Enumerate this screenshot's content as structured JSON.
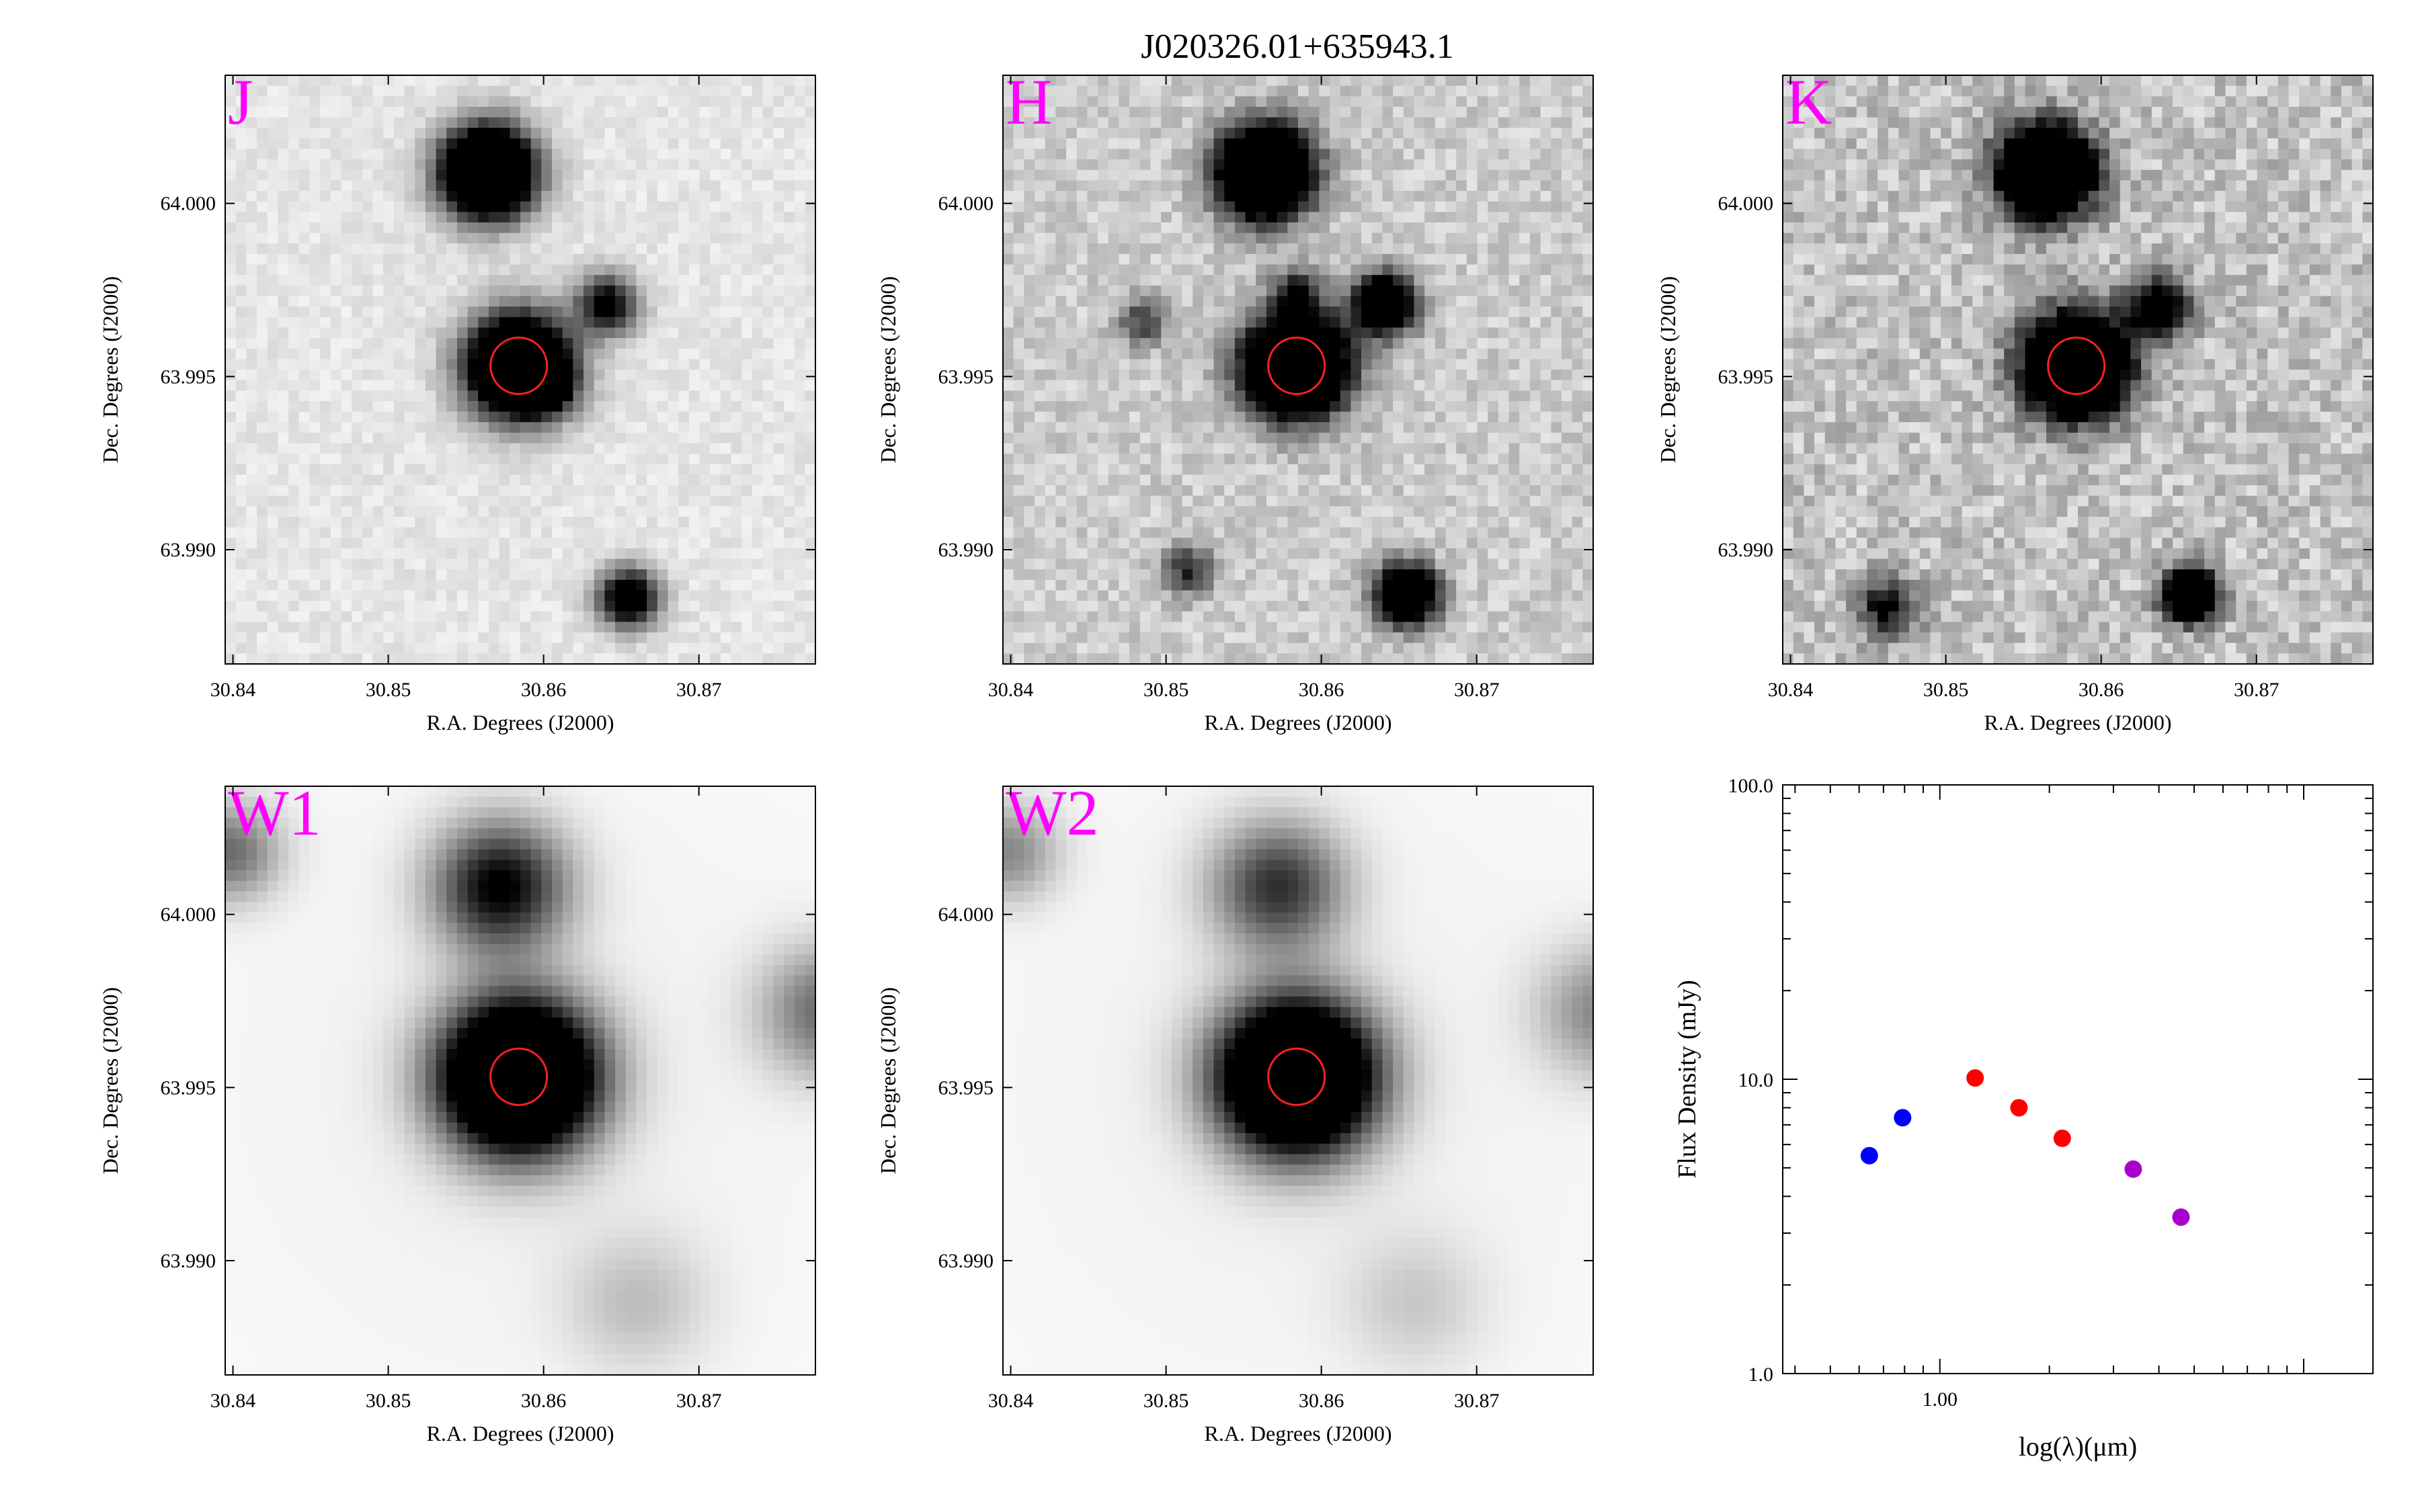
{
  "figure": {
    "title": "J020326.01+635943.1",
    "colors": {
      "band_label": "#ff00ff",
      "aperture": "#ff2020",
      "frame": "#000000"
    }
  },
  "image_axes": {
    "xlabel": "R.A. Degrees (J2000)",
    "ylabel": "Dec. Degrees (J2000)",
    "xticks": [
      30.84,
      30.85,
      30.86,
      30.87
    ],
    "xtick_labels": [
      "30.84",
      "30.85",
      "30.86",
      "30.87"
    ],
    "yticks": [
      64.0,
      63.995,
      63.99
    ],
    "ytick_labels": [
      "64.000",
      "63.995",
      "63.990"
    ],
    "xlim": [
      30.8395,
      30.8775
    ],
    "ylim": [
      63.9867,
      64.0037
    ]
  },
  "target": {
    "ra": 30.8584,
    "dec": 63.99531
  },
  "panels": [
    {
      "band": "J",
      "sources": [
        {
          "ra": 30.8564,
          "dec": 64.0009,
          "flux": 1.0,
          "sigma": 0.0009
        },
        {
          "ra": 30.8584,
          "dec": 63.99531,
          "flux": 1.0,
          "sigma": 0.001
        },
        {
          "ra": 30.8641,
          "dec": 63.9971,
          "flux": 0.45,
          "sigma": 0.0006
        },
        {
          "ra": 30.8655,
          "dec": 63.9886,
          "flux": 0.55,
          "sigma": 0.0006
        },
        {
          "ra": 30.8601,
          "dec": 63.9947,
          "flux": 0.35,
          "sigma": 0.0005
        }
      ]
    },
    {
      "band": "H",
      "sources": [
        {
          "ra": 30.8564,
          "dec": 64.0009,
          "flux": 1.0,
          "sigma": 0.0009
        },
        {
          "ra": 30.8584,
          "dec": 63.99531,
          "flux": 1.0,
          "sigma": 0.001
        },
        {
          "ra": 30.8641,
          "dec": 63.9971,
          "flux": 0.7,
          "sigma": 0.0006
        },
        {
          "ra": 30.8655,
          "dec": 63.9887,
          "flux": 0.75,
          "sigma": 0.0006
        },
        {
          "ra": 30.8584,
          "dec": 63.9974,
          "flux": 0.3,
          "sigma": 0.0005
        },
        {
          "ra": 30.8485,
          "dec": 63.9966,
          "flux": 0.25,
          "sigma": 0.0005
        },
        {
          "ra": 30.8515,
          "dec": 63.9894,
          "flux": 0.3,
          "sigma": 0.0005
        }
      ]
    },
    {
      "band": "K",
      "sources": [
        {
          "ra": 30.8564,
          "dec": 64.0009,
          "flux": 1.0,
          "sigma": 0.0009
        },
        {
          "ra": 30.8584,
          "dec": 63.99531,
          "flux": 1.0,
          "sigma": 0.001
        },
        {
          "ra": 30.8657,
          "dec": 63.9887,
          "flux": 0.95,
          "sigma": 0.0005
        },
        {
          "ra": 30.8637,
          "dec": 63.997,
          "flux": 0.5,
          "sigma": 0.0006
        },
        {
          "ra": 30.8462,
          "dec": 63.9883,
          "flux": 0.35,
          "sigma": 0.0006
        }
      ]
    },
    {
      "band": "W1",
      "sources": [
        {
          "ra": 30.8584,
          "dec": 63.99531,
          "flux": 1.0,
          "sigma": 0.0015
        },
        {
          "ra": 30.8572,
          "dec": 64.0008,
          "flux": 0.45,
          "sigma": 0.0013
        },
        {
          "ra": 30.8782,
          "dec": 63.9972,
          "flux": 0.25,
          "sigma": 0.0013
        },
        {
          "ra": 30.8398,
          "dec": 64.0018,
          "flux": 0.25,
          "sigma": 0.001
        },
        {
          "ra": 30.866,
          "dec": 63.9888,
          "flux": 0.1,
          "sigma": 0.0014
        }
      ]
    },
    {
      "band": "W2",
      "sources": [
        {
          "ra": 30.8584,
          "dec": 63.99531,
          "flux": 1.0,
          "sigma": 0.0015
        },
        {
          "ra": 30.8572,
          "dec": 64.0008,
          "flux": 0.35,
          "sigma": 0.0013
        },
        {
          "ra": 30.8782,
          "dec": 63.9972,
          "flux": 0.2,
          "sigma": 0.0013
        },
        {
          "ra": 30.8398,
          "dec": 64.0018,
          "flux": 0.2,
          "sigma": 0.001
        },
        {
          "ra": 30.866,
          "dec": 63.9888,
          "flux": 0.08,
          "sigma": 0.0014
        }
      ]
    }
  ],
  "chart_data": {
    "type": "scatter",
    "title": "",
    "xlabel": "log(λ)(μm)",
    "ylabel": "Flux Density (mJy)",
    "xscale": "log",
    "yscale": "log",
    "xlim": [
      0.37,
      15.5
    ],
    "ylim": [
      1.0,
      100.0
    ],
    "ytick_labels": [
      "1.0",
      "10.0",
      "100.0"
    ],
    "xtick_labels": [
      "1.00"
    ],
    "series": [
      {
        "color": "#0000ff",
        "x": [
          0.64,
          0.79
        ],
        "y": [
          5.5,
          7.4
        ]
      },
      {
        "color": "#ff0000",
        "x": [
          1.25,
          1.65,
          2.17
        ],
        "y": [
          10.1,
          8.0,
          6.3
        ]
      },
      {
        "color": "#aa00cc",
        "x": [
          3.4,
          4.6
        ],
        "y": [
          4.95,
          3.4
        ]
      }
    ]
  }
}
